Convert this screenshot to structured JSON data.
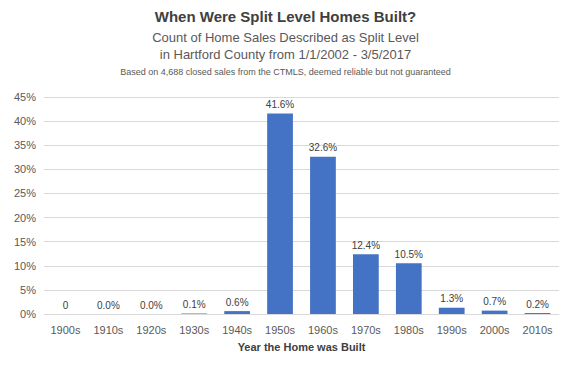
{
  "chart_data": {
    "type": "bar",
    "title": "When Were Split Level Homes Built?",
    "subtitle": [
      "Count of Home Sales Described as Split Level",
      "in Hartford County from 1/1/2002 - 3/5/2017"
    ],
    "annotations": [
      "Based on 4,688 closed sales from the CTMLS, deemed reliable but not guaranteed"
    ],
    "x_label": "Year the Home was Built",
    "categories": [
      "1900s",
      "1910s",
      "1920s",
      "1930s",
      "1940s",
      "1950s",
      "1960s",
      "1970s",
      "1980s",
      "1990s",
      "2000s",
      "2010s"
    ],
    "values": [
      0,
      0.0,
      0.0,
      0.1,
      0.6,
      41.6,
      32.6,
      12.4,
      10.5,
      1.3,
      0.7,
      0.2
    ],
    "value_labels": [
      "0",
      "0.0%",
      "0.0%",
      "0.1%",
      "0.6%",
      "41.6%",
      "32.6%",
      "12.4%",
      "10.5%",
      "1.3%",
      "0.7%",
      "0.2%"
    ],
    "color": "#4472c4",
    "ylim": [
      0,
      45
    ],
    "yticks": [
      {
        "value": 0,
        "label": "0%"
      },
      {
        "value": 5,
        "label": "5%"
      },
      {
        "value": 10,
        "label": "10%"
      },
      {
        "value": 15,
        "label": "15%"
      },
      {
        "value": 20,
        "label": "20%"
      },
      {
        "value": 25,
        "label": "25%"
      },
      {
        "value": 30,
        "label": "30%"
      },
      {
        "value": 35,
        "label": "35%"
      },
      {
        "value": 40,
        "label": "40%"
      },
      {
        "value": 45,
        "label": "45%"
      }
    ],
    "grid": true,
    "data_labels": true
  }
}
